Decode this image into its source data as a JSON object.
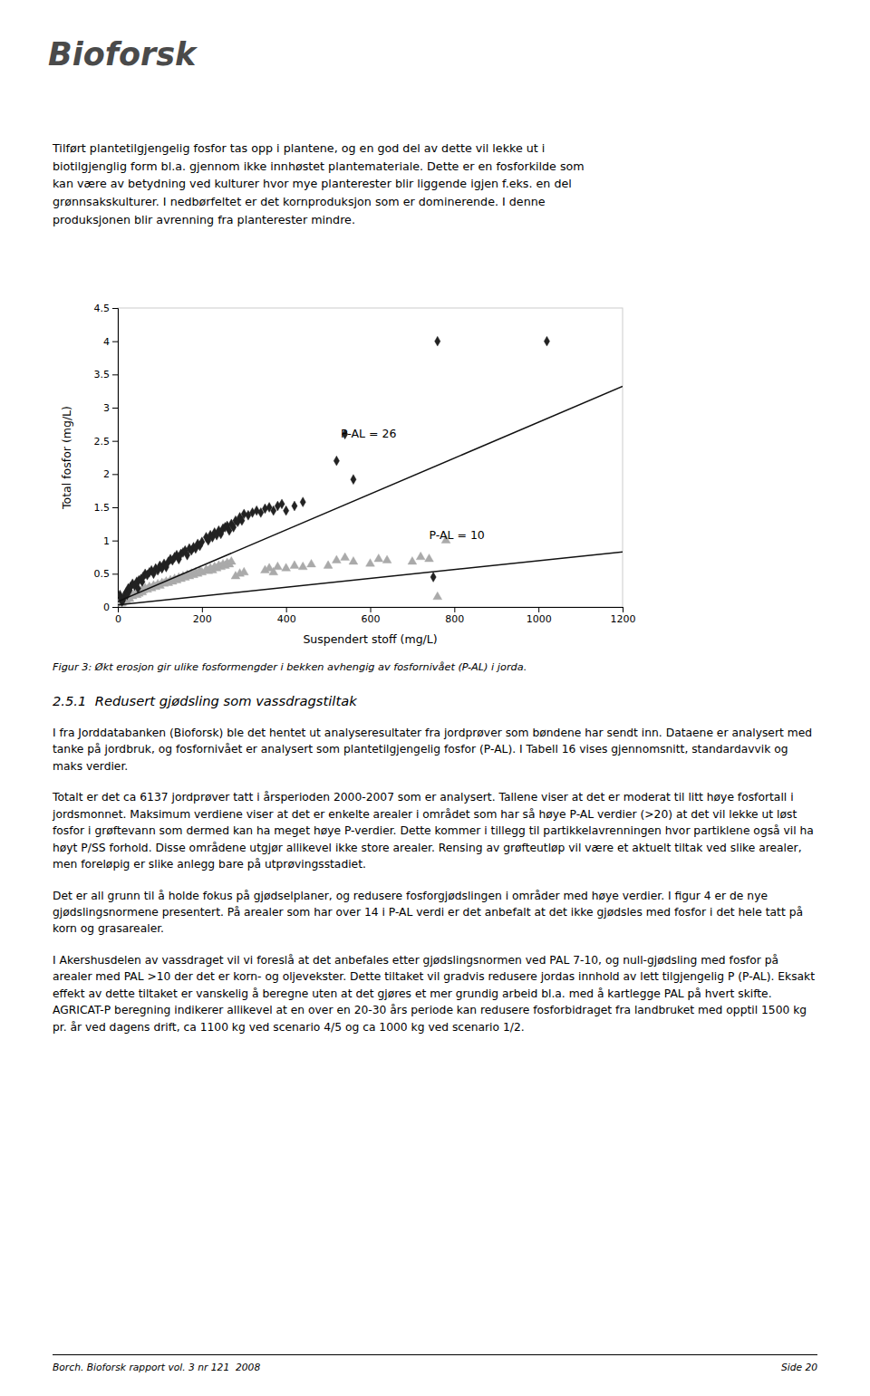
{
  "logo": [
    "Bio",
    "forsk"
  ],
  "header_text_lines": [
    "Tilført plantetilgjengelig fosfor tas opp i plantene, og en god del av dette vil lekke ut i",
    "biotilgjenglig form bl.a. gjennom ikke innhøstet plantemateriale. Dette er en fosforkilde som",
    "kan være av betydning ved kulturer hvor mye planterester blir liggende igjen f.eks. en del",
    "grønnsakskulturer. I nedbørfeltet er det kornproduksjon som er dominerende. I denne",
    "produksjonen blir avrenning fra planterester mindre."
  ],
  "figcaption": "Figur 3: Økt erosjon gir ulike fosformengder i bekken avhengig av fosfornivået (P-AL) i jorda.",
  "section_title": "2.5.1  Redusert gjødsling som vassdragstiltak",
  "body_paragraphs": [
    "I fra Jorddatabanken (Bioforsk) ble det hentet ut analyseresultater fra jordprøver som bøndene har sendt inn. Dataene er analysert med tanke på jordbruk, og fosfornivået er analysert som plantetilgjengelig fosfor (P-AL). I Tabell 16 vises gjennomsnitt, standardavvik og maks verdier.",
    "Totalt er det ca 6137 jordprøver tatt i årsperioden 2000-2007 som er analysert. Tallene viser at det er moderat til litt høye fosfortall i jordsmonnet. Maksimum verdiene viser at det er enkelte arealer i området som har så høye P-AL verdier (>20) at det vil lekke ut løst fosfor i grøftevann som dermed kan ha meget høye P-verdier. Dette kommer i tillegg til partikkelavrenningen hvor partiklene også vil ha høyt P/SS forhold. Disse områdene utgjør allikevel ikke store arealer. Rensing av grøfteutløp vil være et aktuelt tiltak ved slike arealer, men foreløpig er slike anlegg bare på utprøvingsstadiet.",
    "Det er all grunn til å holde fokus på gjødselplaner, og redusere fosforgjødslingen i områder med høye verdier. I figur 4 er de nye gjødslingsnormene presentert. På arealer som har over 14 i P-AL verdi er det anbefalt at det ikke gjødsles med fosfor i det hele tatt på korn og grasarealer.",
    "I Akershusdelen av vassdraget vil vi foreslå at det anbefales etter gjødslingsnormen ved PAL 7-10, og null-gjødsling med fosfor på arealer med PAL >10 der det er korn- og oljevekster. Dette tiltaket vil gradvis redusere jordas innhold av lett tilgjengelig P (P-AL). Eksakt effekt av dette tiltaket er vanskelig å beregne uten at det gjøres et mer grundig arbeid bl.a. med å kartlegge PAL på hvert skifte. AGRICAT-P beregning indikerer allikevel at en over en 20-30 års periode kan redusere fosforbidraget fra landbruket med opptil 1500 kg pr. år ved dagens drift, ca 1100 kg ved scenario 4/5 og ca 1000 kg ved scenario 1/2."
  ],
  "footer_left": "Borch. Bioforsk rapport vol. 3 nr 121  2008",
  "footer_right": "Side 20",
  "chart_data": {
    "type": "scatter",
    "xlabel": "Suspendert stoff (mg/L)",
    "ylabel": "Total fosfor (mg/L)",
    "xlim": [
      0,
      1200
    ],
    "ylim": [
      0,
      4.5
    ],
    "xticks": [
      0,
      200,
      400,
      600,
      800,
      1000,
      1200
    ],
    "yticks": [
      0,
      0.5,
      1,
      1.5,
      2,
      2.5,
      3,
      3.5,
      4,
      4.5
    ],
    "grid": false,
    "series": [
      {
        "type": "scatter",
        "marker": "triangle",
        "color": "#aaaaaa",
        "x": [
          5,
          8,
          10,
          12,
          15,
          18,
          20,
          22,
          25,
          28,
          30,
          35,
          40,
          45,
          48,
          50,
          55,
          58,
          60,
          65,
          70,
          75,
          80,
          85,
          90,
          95,
          100,
          105,
          110,
          115,
          120,
          125,
          130,
          135,
          140,
          145,
          150,
          155,
          160,
          165,
          170,
          175,
          180,
          185,
          190,
          195,
          200,
          210,
          215,
          220,
          225,
          230,
          235,
          240,
          245,
          250,
          255,
          260,
          265,
          270,
          280,
          290,
          300,
          350,
          360,
          370,
          380,
          400,
          420,
          440,
          460,
          500,
          520,
          540,
          560,
          600,
          620,
          640,
          700,
          720,
          740,
          760,
          780
        ],
        "values": [
          0.08,
          0.05,
          0.06,
          0.08,
          0.1,
          0.12,
          0.1,
          0.14,
          0.15,
          0.12,
          0.18,
          0.16,
          0.2,
          0.18,
          0.22,
          0.2,
          0.24,
          0.22,
          0.25,
          0.28,
          0.26,
          0.3,
          0.28,
          0.32,
          0.3,
          0.34,
          0.32,
          0.36,
          0.35,
          0.38,
          0.36,
          0.4,
          0.38,
          0.42,
          0.4,
          0.44,
          0.42,
          0.46,
          0.44,
          0.48,
          0.46,
          0.5,
          0.48,
          0.52,
          0.5,
          0.54,
          0.52,
          0.56,
          0.54,
          0.58,
          0.55,
          0.6,
          0.58,
          0.62,
          0.6,
          0.64,
          0.62,
          0.66,
          0.64,
          0.68,
          0.46,
          0.5,
          0.52,
          0.55,
          0.58,
          0.52,
          0.6,
          0.58,
          0.62,
          0.6,
          0.64,
          0.62,
          0.7,
          0.74,
          0.68,
          0.65,
          0.72,
          0.7,
          0.68,
          0.75,
          0.72,
          0.15,
          1.0
        ]
      },
      {
        "type": "scatter",
        "marker": "diamond",
        "color": "#222222",
        "x": [
          5,
          8,
          10,
          12,
          15,
          18,
          20,
          22,
          25,
          28,
          30,
          35,
          40,
          45,
          48,
          50,
          55,
          58,
          60,
          65,
          70,
          75,
          80,
          85,
          90,
          95,
          100,
          105,
          110,
          115,
          120,
          125,
          130,
          135,
          140,
          145,
          150,
          155,
          160,
          165,
          170,
          175,
          180,
          185,
          190,
          195,
          200,
          210,
          215,
          220,
          225,
          230,
          235,
          240,
          245,
          250,
          255,
          260,
          265,
          270,
          275,
          280,
          285,
          290,
          295,
          300,
          310,
          320,
          330,
          340,
          350,
          360,
          370,
          380,
          390,
          400,
          420,
          440,
          520,
          540,
          560,
          750,
          760,
          1020
        ],
        "values": [
          0.18,
          0.12,
          0.08,
          0.1,
          0.15,
          0.2,
          0.22,
          0.18,
          0.28,
          0.25,
          0.3,
          0.35,
          0.32,
          0.38,
          0.28,
          0.4,
          0.42,
          0.38,
          0.45,
          0.5,
          0.48,
          0.52,
          0.55,
          0.5,
          0.58,
          0.55,
          0.62,
          0.58,
          0.65,
          0.6,
          0.68,
          0.72,
          0.7,
          0.75,
          0.78,
          0.72,
          0.8,
          0.82,
          0.85,
          0.78,
          0.88,
          0.85,
          0.9,
          0.88,
          0.95,
          0.92,
          0.98,
          1.05,
          1.0,
          1.08,
          1.05,
          1.12,
          1.08,
          1.15,
          1.1,
          1.18,
          1.2,
          1.22,
          1.15,
          1.25,
          1.2,
          1.3,
          1.28,
          1.35,
          1.3,
          1.4,
          1.38,
          1.42,
          1.45,
          1.42,
          1.48,
          1.5,
          1.45,
          1.52,
          1.55,
          1.45,
          1.52,
          1.58,
          2.2,
          2.6,
          1.92,
          0.45,
          4.0,
          4.0
        ]
      },
      {
        "type": "line",
        "line_style": "solid",
        "color": "#111111",
        "x": [
          0,
          1200
        ],
        "values": [
          0.08,
          3.32
        ]
      },
      {
        "type": "line",
        "line_style": "solid",
        "color": "#111111",
        "x": [
          0,
          1200
        ],
        "values": [
          0.03,
          0.83
        ]
      }
    ],
    "annotations": [
      {
        "text": "P-AL = 26",
        "x": 530,
        "y": 2.55
      },
      {
        "text": "P-AL = 10",
        "x": 740,
        "y": 1.02
      }
    ]
  }
}
